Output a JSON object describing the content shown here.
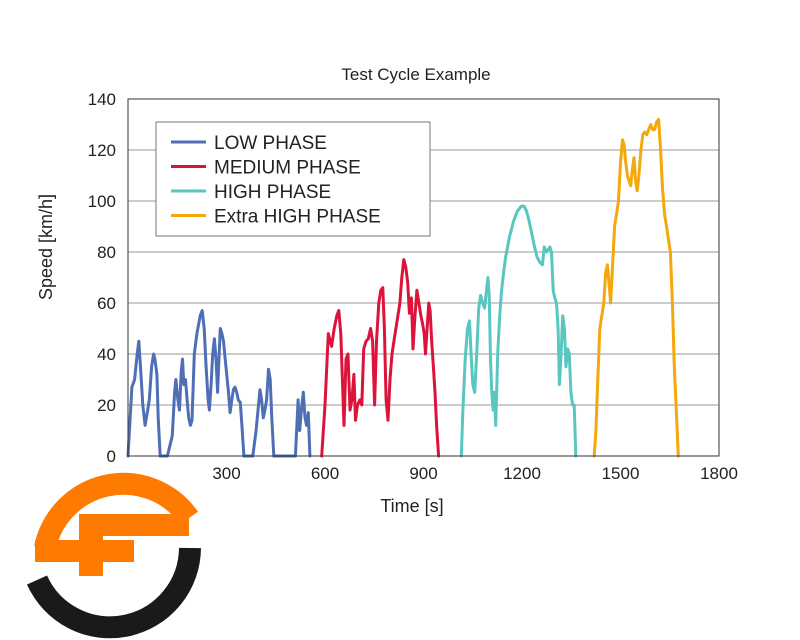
{
  "chart_data": {
    "type": "line",
    "title": "Test Cycle Example",
    "xlabel": "Time [s]",
    "ylabel": "Speed [km/h]",
    "xlim": [
      0,
      1800
    ],
    "ylim": [
      0,
      140
    ],
    "xticks": [
      300,
      600,
      900,
      1200,
      1500,
      1800
    ],
    "yticks": [
      0,
      20,
      40,
      60,
      80,
      100,
      120,
      140
    ],
    "grid": "horizontal",
    "legend_position": "top-left",
    "series": [
      {
        "name": "LOW PHASE",
        "color": "#4e6fb5",
        "points": [
          [
            0,
            0
          ],
          [
            12,
            27
          ],
          [
            20,
            30
          ],
          [
            28,
            40
          ],
          [
            33,
            45
          ],
          [
            38,
            35
          ],
          [
            45,
            20
          ],
          [
            52,
            12
          ],
          [
            60,
            18
          ],
          [
            65,
            22
          ],
          [
            72,
            35
          ],
          [
            78,
            40
          ],
          [
            82,
            38
          ],
          [
            88,
            32
          ],
          [
            92,
            15
          ],
          [
            98,
            0
          ],
          [
            120,
            0
          ],
          [
            135,
            8
          ],
          [
            142,
            25
          ],
          [
            146,
            30
          ],
          [
            152,
            22
          ],
          [
            157,
            18
          ],
          [
            162,
            33
          ],
          [
            166,
            38
          ],
          [
            170,
            28
          ],
          [
            175,
            30
          ],
          [
            180,
            22
          ],
          [
            185,
            15
          ],
          [
            190,
            12
          ],
          [
            195,
            14
          ],
          [
            202,
            40
          ],
          [
            210,
            48
          ],
          [
            220,
            55
          ],
          [
            226,
            57
          ],
          [
            232,
            50
          ],
          [
            238,
            35
          ],
          [
            244,
            22
          ],
          [
            248,
            18
          ],
          [
            253,
            28
          ],
          [
            258,
            40
          ],
          [
            263,
            46
          ],
          [
            268,
            38
          ],
          [
            273,
            25
          ],
          [
            276,
            35
          ],
          [
            281,
            50
          ],
          [
            286,
            48
          ],
          [
            291,
            45
          ],
          [
            296,
            38
          ],
          [
            302,
            30
          ],
          [
            306,
            25
          ],
          [
            311,
            17
          ],
          [
            316,
            22
          ],
          [
            321,
            26
          ],
          [
            326,
            27
          ],
          [
            331,
            25
          ],
          [
            336,
            22
          ],
          [
            342,
            21
          ],
          [
            347,
            12
          ],
          [
            353,
            0
          ],
          [
            380,
            0
          ],
          [
            390,
            10
          ],
          [
            396,
            18
          ],
          [
            402,
            26
          ],
          [
            407,
            22
          ],
          [
            412,
            15
          ],
          [
            417,
            18
          ],
          [
            422,
            22
          ],
          [
            428,
            34
          ],
          [
            433,
            30
          ],
          [
            438,
            15
          ],
          [
            444,
            0
          ],
          [
            510,
            0
          ],
          [
            518,
            22
          ],
          [
            523,
            10
          ],
          [
            528,
            18
          ],
          [
            534,
            25
          ],
          [
            539,
            15
          ],
          [
            544,
            12
          ],
          [
            549,
            17
          ],
          [
            554,
            0
          ]
        ]
      },
      {
        "name": "MEDIUM PHASE",
        "color": "#dc143c",
        "points": [
          [
            590,
            0
          ],
          [
            600,
            20
          ],
          [
            610,
            48
          ],
          [
            620,
            43
          ],
          [
            628,
            50
          ],
          [
            636,
            55
          ],
          [
            642,
            57
          ],
          [
            648,
            48
          ],
          [
            653,
            30
          ],
          [
            658,
            12
          ],
          [
            664,
            38
          ],
          [
            670,
            40
          ],
          [
            676,
            18
          ],
          [
            682,
            22
          ],
          [
            688,
            32
          ],
          [
            693,
            14
          ],
          [
            699,
            20
          ],
          [
            706,
            22
          ],
          [
            712,
            20
          ],
          [
            718,
            42
          ],
          [
            725,
            45
          ],
          [
            732,
            46
          ],
          [
            739,
            50
          ],
          [
            745,
            45
          ],
          [
            751,
            20
          ],
          [
            757,
            45
          ],
          [
            764,
            60
          ],
          [
            770,
            65
          ],
          [
            776,
            66
          ],
          [
            781,
            50
          ],
          [
            786,
            22
          ],
          [
            792,
            14
          ],
          [
            798,
            30
          ],
          [
            804,
            40
          ],
          [
            810,
            45
          ],
          [
            816,
            50
          ],
          [
            822,
            55
          ],
          [
            828,
            60
          ],
          [
            834,
            70
          ],
          [
            840,
            77
          ],
          [
            846,
            74
          ],
          [
            852,
            68
          ],
          [
            857,
            56
          ],
          [
            863,
            62
          ],
          [
            868,
            42
          ],
          [
            874,
            55
          ],
          [
            880,
            65
          ],
          [
            886,
            60
          ],
          [
            892,
            55
          ],
          [
            897,
            52
          ],
          [
            902,
            48
          ],
          [
            906,
            40
          ],
          [
            911,
            50
          ],
          [
            916,
            60
          ],
          [
            920,
            57
          ],
          [
            925,
            45
          ],
          [
            930,
            35
          ],
          [
            935,
            25
          ],
          [
            940,
            12
          ],
          [
            946,
            0
          ]
        ]
      },
      {
        "name": "HIGH PHASE",
        "color": "#58c6c1",
        "points": [
          [
            1015,
            0
          ],
          [
            1020,
            18
          ],
          [
            1027,
            38
          ],
          [
            1034,
            50
          ],
          [
            1040,
            53
          ],
          [
            1045,
            40
          ],
          [
            1050,
            28
          ],
          [
            1056,
            25
          ],
          [
            1062,
            40
          ],
          [
            1068,
            58
          ],
          [
            1074,
            63
          ],
          [
            1080,
            60
          ],
          [
            1086,
            58
          ],
          [
            1092,
            65
          ],
          [
            1096,
            70
          ],
          [
            1100,
            63
          ],
          [
            1104,
            38
          ],
          [
            1108,
            25
          ],
          [
            1112,
            18
          ],
          [
            1116,
            25
          ],
          [
            1120,
            12
          ],
          [
            1126,
            40
          ],
          [
            1132,
            55
          ],
          [
            1138,
            65
          ],
          [
            1144,
            72
          ],
          [
            1150,
            78
          ],
          [
            1156,
            82
          ],
          [
            1162,
            86
          ],
          [
            1168,
            89
          ],
          [
            1174,
            92
          ],
          [
            1180,
            94
          ],
          [
            1186,
            96
          ],
          [
            1192,
            97
          ],
          [
            1198,
            98
          ],
          [
            1206,
            98
          ],
          [
            1214,
            96
          ],
          [
            1222,
            92
          ],
          [
            1230,
            87
          ],
          [
            1238,
            82
          ],
          [
            1246,
            78
          ],
          [
            1254,
            76
          ],
          [
            1262,
            75
          ],
          [
            1268,
            82
          ],
          [
            1274,
            80
          ],
          [
            1280,
            81
          ],
          [
            1285,
            82
          ],
          [
            1290,
            80
          ],
          [
            1295,
            65
          ],
          [
            1300,
            62
          ],
          [
            1305,
            60
          ],
          [
            1310,
            50
          ],
          [
            1314,
            28
          ],
          [
            1319,
            40
          ],
          [
            1324,
            55
          ],
          [
            1329,
            50
          ],
          [
            1334,
            35
          ],
          [
            1339,
            42
          ],
          [
            1344,
            40
          ],
          [
            1349,
            25
          ],
          [
            1354,
            20
          ],
          [
            1359,
            20
          ],
          [
            1364,
            0
          ]
        ]
      },
      {
        "name": "Extra HIGH PHASE",
        "color": "#f5a80d",
        "points": [
          [
            1420,
            0
          ],
          [
            1425,
            10
          ],
          [
            1431,
            30
          ],
          [
            1437,
            50
          ],
          [
            1443,
            55
          ],
          [
            1449,
            60
          ],
          [
            1455,
            72
          ],
          [
            1460,
            75
          ],
          [
            1465,
            68
          ],
          [
            1470,
            60
          ],
          [
            1476,
            75
          ],
          [
            1482,
            90
          ],
          [
            1488,
            95
          ],
          [
            1494,
            100
          ],
          [
            1500,
            115
          ],
          [
            1506,
            124
          ],
          [
            1511,
            122
          ],
          [
            1516,
            115
          ],
          [
            1521,
            110
          ],
          [
            1526,
            108
          ],
          [
            1531,
            106
          ],
          [
            1536,
            112
          ],
          [
            1541,
            117
          ],
          [
            1546,
            108
          ],
          [
            1551,
            104
          ],
          [
            1556,
            110
          ],
          [
            1562,
            120
          ],
          [
            1568,
            126
          ],
          [
            1574,
            127
          ],
          [
            1580,
            126
          ],
          [
            1586,
            128
          ],
          [
            1592,
            130
          ],
          [
            1598,
            128
          ],
          [
            1604,
            128
          ],
          [
            1610,
            131
          ],
          [
            1616,
            132
          ],
          [
            1622,
            120
          ],
          [
            1628,
            105
          ],
          [
            1634,
            95
          ],
          [
            1640,
            90
          ],
          [
            1646,
            85
          ],
          [
            1652,
            80
          ],
          [
            1658,
            60
          ],
          [
            1664,
            35
          ],
          [
            1670,
            18
          ],
          [
            1676,
            0
          ]
        ]
      }
    ]
  },
  "logo": {
    "colors": {
      "orange": "#ff7a00",
      "dark": "#1a1a1a"
    }
  }
}
